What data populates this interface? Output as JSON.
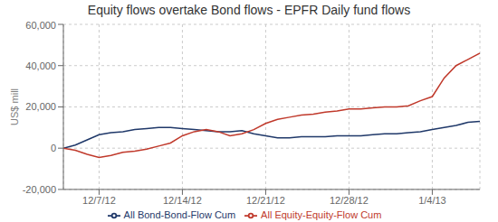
{
  "chart_data": {
    "type": "line",
    "title": "Equity flows overtake Bond flows - EPFR Daily fund flows",
    "y_label": "US$ mill",
    "x": [
      0,
      1,
      2,
      3,
      4,
      5,
      6,
      7,
      8,
      9,
      10,
      11,
      12,
      13,
      14,
      15,
      16,
      17,
      18,
      19,
      20,
      21,
      22,
      23,
      24,
      25,
      26,
      27,
      28,
      29,
      30,
      31,
      32,
      33,
      34,
      35
    ],
    "series": [
      {
        "name": "All Bond-Bond-Flow Cum",
        "color": "#1f3869",
        "values": [
          0,
          1500,
          4000,
          6500,
          7500,
          8000,
          9000,
          9500,
          10000,
          10000,
          9500,
          9000,
          8500,
          8000,
          8000,
          8500,
          7000,
          6000,
          5000,
          5000,
          5500,
          5500,
          5500,
          6000,
          6000,
          6000,
          6500,
          7000,
          7000,
          7500,
          8000,
          9000,
          10000,
          11000,
          12500,
          13000
        ]
      },
      {
        "name": "All Equity-Equity-Flow Cum",
        "color": "#c0392b",
        "values": [
          0,
          -1000,
          -3000,
          -4500,
          -3500,
          -2000,
          -1500,
          -500,
          1000,
          2500,
          6000,
          8000,
          9000,
          8000,
          6000,
          7000,
          9000,
          12000,
          14000,
          15000,
          16000,
          16500,
          17500,
          18000,
          19000,
          19000,
          19500,
          20000,
          20000,
          20500,
          23000,
          25000,
          34000,
          40000,
          43000,
          46000
        ]
      }
    ],
    "xlim": [
      0,
      35
    ],
    "xticks": [
      {
        "value": 3,
        "label": "12/7/12"
      },
      {
        "value": 10,
        "label": "12/14/12"
      },
      {
        "value": 17,
        "label": "12/21/12"
      },
      {
        "value": 24,
        "label": "12/28/12"
      },
      {
        "value": 31,
        "label": "1/4/13"
      }
    ],
    "ylim": [
      -20000,
      60000
    ],
    "yticks": [
      {
        "value": -20000,
        "label": "-20,000"
      },
      0,
      {
        "value": 20000,
        "label": "20,000"
      },
      {
        "value": 40000,
        "label": "40,000"
      },
      {
        "value": 60000,
        "label": "60,000"
      }
    ],
    "grid": true,
    "legend": "bottom"
  }
}
